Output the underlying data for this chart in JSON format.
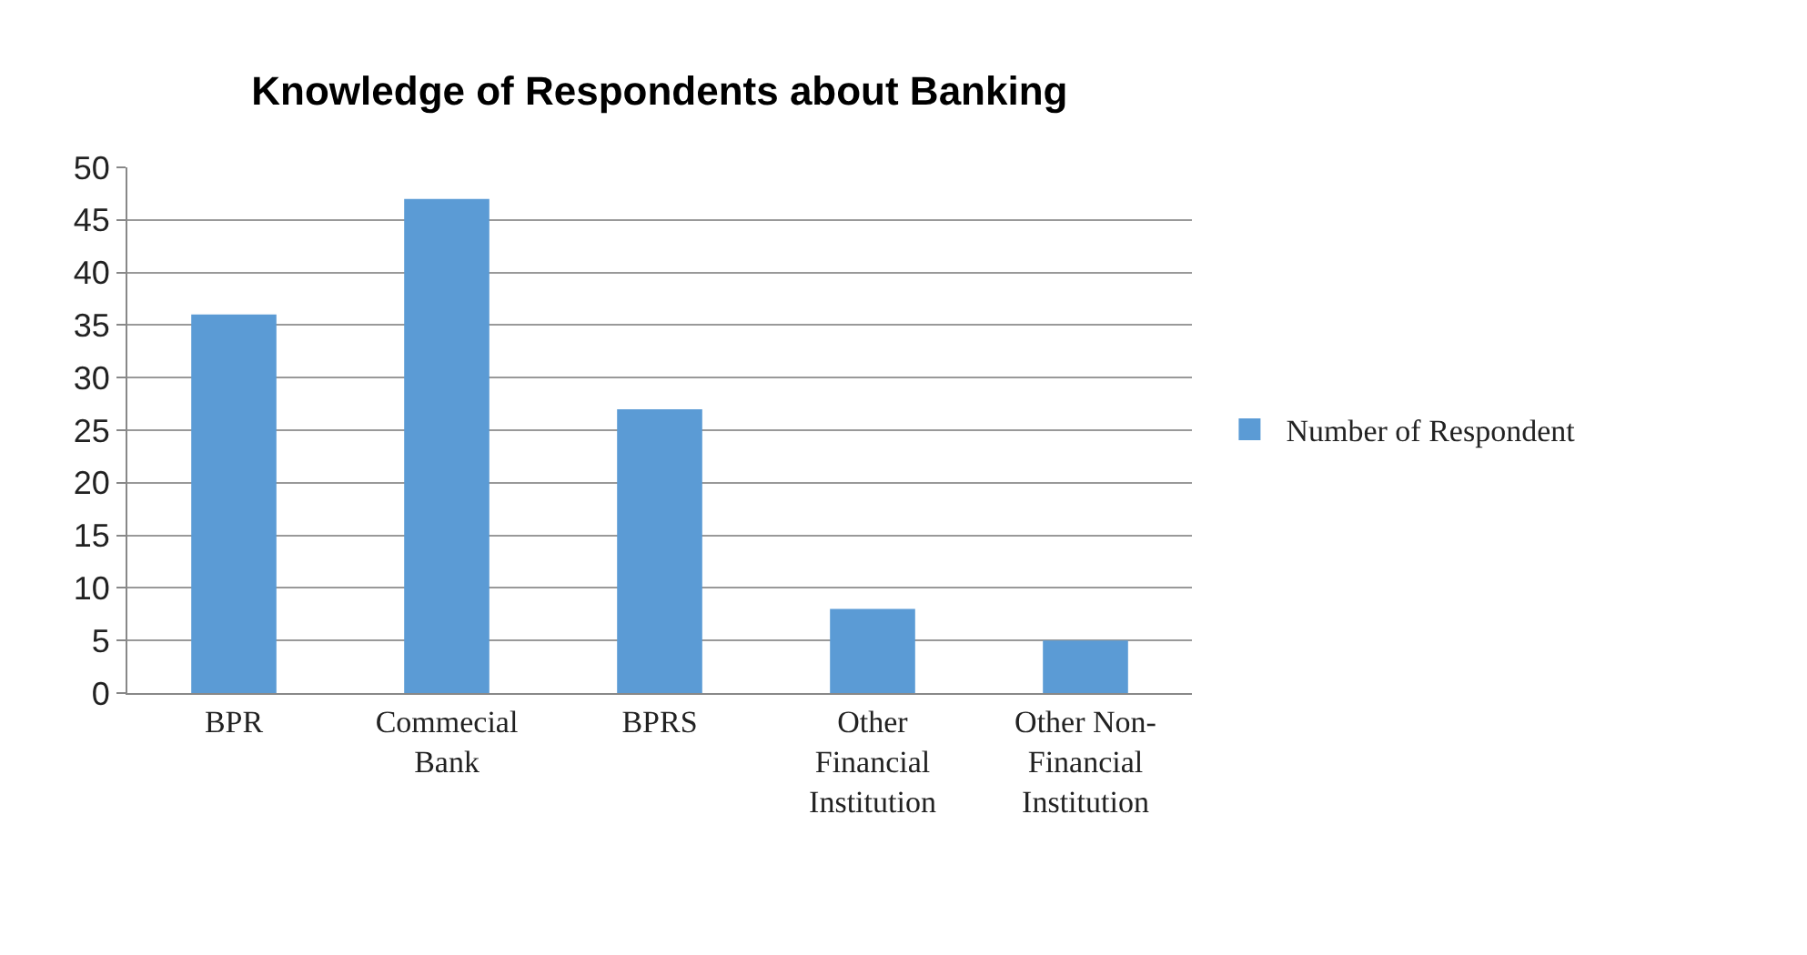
{
  "chart_data": {
    "type": "bar",
    "title": "Knowledge of Respondents about Banking",
    "categories": [
      "BPR",
      "Commecial Bank",
      "BPRS",
      "Other Financial Institution",
      "Other Non-Financial Institution"
    ],
    "series": [
      {
        "name": "Number of Respondent",
        "color": "#5b9bd5",
        "values": [
          36,
          47,
          27,
          8,
          5
        ]
      }
    ],
    "ylim": [
      0,
      50
    ],
    "yticks": [
      0,
      5,
      10,
      15,
      20,
      25,
      30,
      35,
      40,
      45,
      50
    ],
    "grid": "y",
    "legend": "right"
  }
}
